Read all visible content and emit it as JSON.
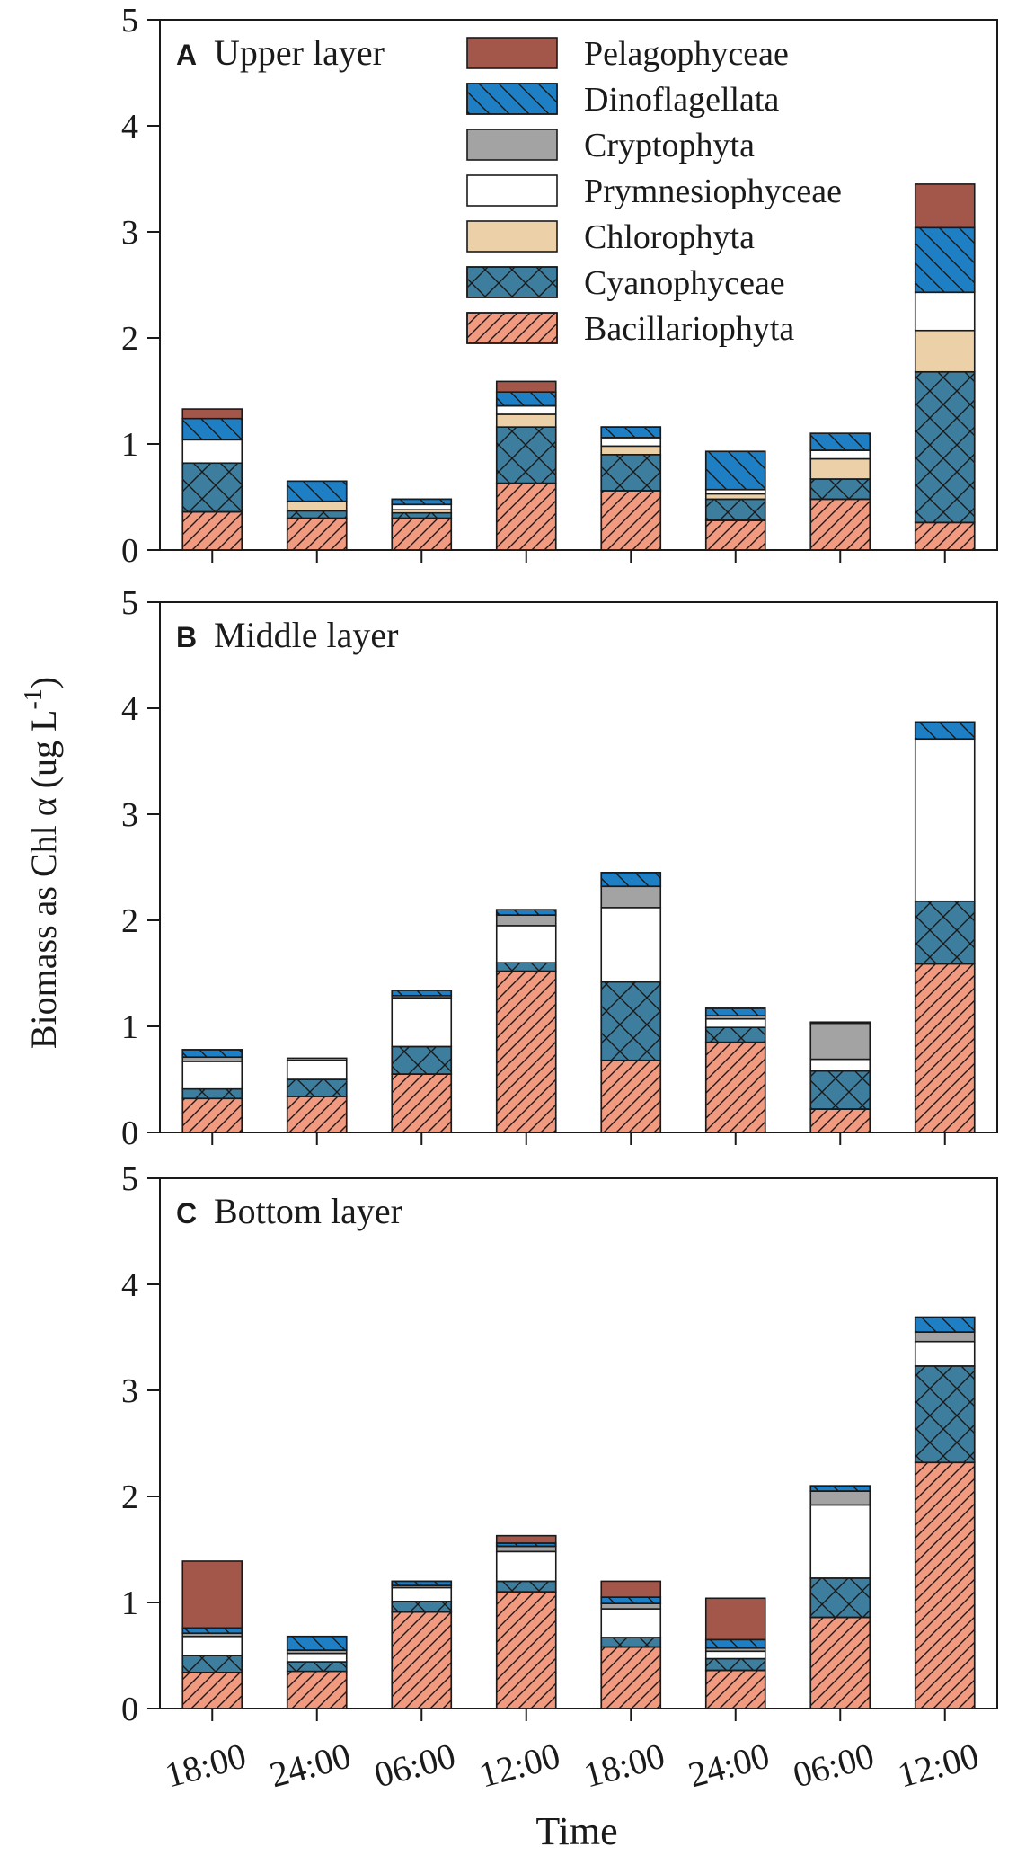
{
  "figure": {
    "ylabel": "Biomass as Chl α (ug L",
    "ylabel_sup": "-1",
    "ylabel_tail": ")",
    "xlabel": "Time"
  },
  "legend": {
    "entries": [
      {
        "key": "Pelagophyceae",
        "label": "Pelagophyceae"
      },
      {
        "key": "Dinoflagellata",
        "label": "Dinoflagellata"
      },
      {
        "key": "Cryptophyta",
        "label": "Cryptophyta"
      },
      {
        "key": "Prymnesiophyceae",
        "label": "Prymnesiophyceae"
      },
      {
        "key": "Chlorophyta",
        "label": "Chlorophyta"
      },
      {
        "key": "Cyanophyceae",
        "label": "Cyanophyceae"
      },
      {
        "key": "Bacillariophyta",
        "label": "Bacillariophyta"
      }
    ]
  },
  "colors": {
    "Bacillariophyta": "#f29a80",
    "Cyanophyceae": "#3d7d9e",
    "Chlorophyta": "#ecd0a8",
    "Prymnesiophyceae": "#ffffff",
    "Cryptophyta": "#a3a3a3",
    "Dinoflagellata": "#1f7fc4",
    "Pelagophyceae": "#a3574b"
  },
  "chart_data": [
    {
      "type": "bar",
      "stacked": true,
      "panel_letter": "A",
      "title": "Upper layer",
      "categories": [
        "18:00",
        "24:00",
        "06:00",
        "12:00",
        "18:00",
        "24:00",
        "06:00",
        "12:00"
      ],
      "ylim": [
        0,
        5
      ],
      "yticks": [
        "0",
        "1",
        "2",
        "3",
        "4",
        "5"
      ],
      "series": [
        {
          "name": "Bacillariophyta",
          "values": [
            0.36,
            0.3,
            0.3,
            0.63,
            0.56,
            0.28,
            0.48,
            0.26
          ]
        },
        {
          "name": "Cyanophyceae",
          "values": [
            0.46,
            0.07,
            0.05,
            0.53,
            0.34,
            0.2,
            0.19,
            1.42
          ]
        },
        {
          "name": "Chlorophyta",
          "values": [
            0.0,
            0.09,
            0.03,
            0.12,
            0.08,
            0.05,
            0.19,
            0.39
          ]
        },
        {
          "name": "Prymnesiophyceae",
          "values": [
            0.22,
            0.0,
            0.05,
            0.08,
            0.08,
            0.04,
            0.08,
            0.36
          ]
        },
        {
          "name": "Cryptophyta",
          "values": [
            0.0,
            0.0,
            0.0,
            0.0,
            0.0,
            0.0,
            0.0,
            0.0
          ]
        },
        {
          "name": "Dinoflagellata",
          "values": [
            0.2,
            0.19,
            0.05,
            0.13,
            0.1,
            0.36,
            0.16,
            0.61
          ]
        },
        {
          "name": "Pelagophyceae",
          "values": [
            0.09,
            0.0,
            0.0,
            0.1,
            0.0,
            0.0,
            0.0,
            0.41
          ]
        }
      ]
    },
    {
      "type": "bar",
      "stacked": true,
      "panel_letter": "B",
      "title": "Middle layer",
      "categories": [
        "18:00",
        "24:00",
        "06:00",
        "12:00",
        "18:00",
        "24:00",
        "06:00",
        "12:00"
      ],
      "ylim": [
        0,
        5
      ],
      "yticks": [
        "0",
        "1",
        "2",
        "3",
        "4",
        "5"
      ],
      "series": [
        {
          "name": "Bacillariophyta",
          "values": [
            0.32,
            0.34,
            0.55,
            1.52,
            0.68,
            0.85,
            0.22,
            1.59
          ]
        },
        {
          "name": "Cyanophyceae",
          "values": [
            0.09,
            0.16,
            0.26,
            0.08,
            0.74,
            0.14,
            0.36,
            0.59
          ]
        },
        {
          "name": "Chlorophyta",
          "values": [
            0.0,
            0.0,
            0.0,
            0.0,
            0.0,
            0.0,
            0.0,
            0.0
          ]
        },
        {
          "name": "Prymnesiophyceae",
          "values": [
            0.26,
            0.18,
            0.46,
            0.35,
            0.7,
            0.08,
            0.11,
            1.53
          ]
        },
        {
          "name": "Cryptophyta",
          "values": [
            0.04,
            0.02,
            0.02,
            0.1,
            0.2,
            0.03,
            0.34,
            0.0
          ]
        },
        {
          "name": "Dinoflagellata",
          "values": [
            0.07,
            0.0,
            0.05,
            0.05,
            0.13,
            0.07,
            0.01,
            0.16
          ]
        },
        {
          "name": "Pelagophyceae",
          "values": [
            0.0,
            0.0,
            0.0,
            0.0,
            0.0,
            0.0,
            0.0,
            0.0
          ]
        }
      ]
    },
    {
      "type": "bar",
      "stacked": true,
      "panel_letter": "C",
      "title": "Bottom layer",
      "categories": [
        "18:00",
        "24:00",
        "06:00",
        "12:00",
        "18:00",
        "24:00",
        "06:00",
        "12:00"
      ],
      "ylim": [
        0,
        5
      ],
      "yticks": [
        "0",
        "1",
        "2",
        "3",
        "4",
        "5"
      ],
      "series": [
        {
          "name": "Bacillariophyta",
          "values": [
            0.34,
            0.35,
            0.91,
            1.1,
            0.58,
            0.36,
            0.86,
            2.32
          ]
        },
        {
          "name": "Cyanophyceae",
          "values": [
            0.16,
            0.09,
            0.1,
            0.1,
            0.09,
            0.11,
            0.37,
            0.91
          ]
        },
        {
          "name": "Chlorophyta",
          "values": [
            0.0,
            0.0,
            0.0,
            0.0,
            0.0,
            0.0,
            0.0,
            0.0
          ]
        },
        {
          "name": "Prymnesiophyceae",
          "values": [
            0.18,
            0.08,
            0.13,
            0.28,
            0.27,
            0.07,
            0.69,
            0.23
          ]
        },
        {
          "name": "Cryptophyta",
          "values": [
            0.03,
            0.03,
            0.02,
            0.05,
            0.05,
            0.03,
            0.13,
            0.09
          ]
        },
        {
          "name": "Dinoflagellata",
          "values": [
            0.05,
            0.13,
            0.04,
            0.03,
            0.06,
            0.08,
            0.05,
            0.14
          ]
        },
        {
          "name": "Pelagophyceae",
          "values": [
            0.63,
            0.0,
            0.0,
            0.07,
            0.15,
            0.39,
            0.0,
            0.0
          ]
        }
      ]
    }
  ]
}
